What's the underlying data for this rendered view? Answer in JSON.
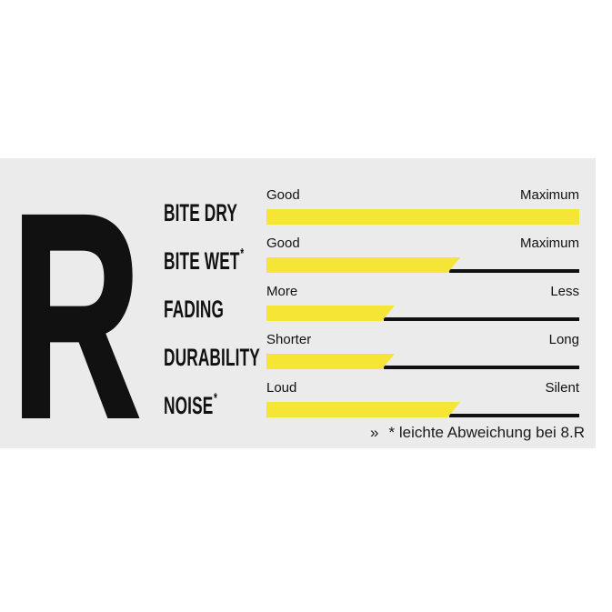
{
  "panel": {
    "letter": "R",
    "footnote_marker": "»",
    "footnote_text": "* leichte Abweichung bei 8.R",
    "colors": {
      "panel_background": "#ebebeb",
      "bar_yellow": "#f5e636",
      "ink_black": "#111111"
    },
    "rows": [
      {
        "label": "BITE DRY",
        "label_suffix": "",
        "left_label": "Good",
        "right_label": "Maximum",
        "value_pct": 100
      },
      {
        "label": "BITE WET",
        "label_suffix": "*",
        "left_label": "Good",
        "right_label": "Maximum",
        "value_pct": 62
      },
      {
        "label": "FADING",
        "label_suffix": "",
        "left_label": "More",
        "right_label": "Less",
        "value_pct": 41
      },
      {
        "label": "DURABILITY",
        "label_suffix": "",
        "left_label": "Shorter",
        "right_label": "Long",
        "value_pct": 41
      },
      {
        "label": "NOISE",
        "label_suffix": "*",
        "left_label": "Loud",
        "right_label": "Silent",
        "value_pct": 62
      }
    ]
  },
  "chart_data": {
    "type": "bar",
    "title": "R",
    "categories": [
      "BITE DRY",
      "BITE WET*",
      "FADING",
      "DURABILITY",
      "NOISE*"
    ],
    "values": [
      100,
      62,
      41,
      41,
      62
    ],
    "scale_end_labels": [
      [
        "Good",
        "Maximum"
      ],
      [
        "Good",
        "Maximum"
      ],
      [
        "More",
        "Less"
      ],
      [
        "Shorter",
        "Long"
      ],
      [
        "Loud",
        "Silent"
      ]
    ],
    "xlim": [
      0,
      100
    ],
    "orientation": "horizontal",
    "bar_color": "#f5e636",
    "annotation": "» * leichte Abweichung bei 8.R",
    "legend": "off",
    "grid": "off"
  }
}
